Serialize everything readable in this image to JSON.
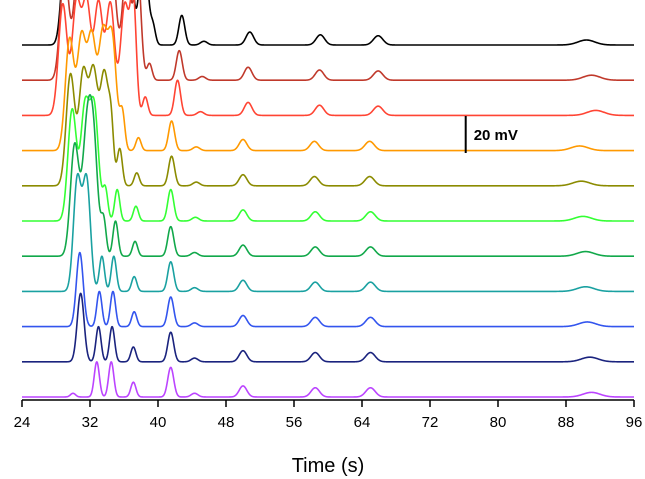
{
  "chart_data": {
    "type": "line",
    "title": "",
    "xlabel": "Time (s)",
    "ylabel": "",
    "xlim": [
      24,
      96
    ],
    "xticks": [
      "24",
      "32",
      "40",
      "48",
      "56",
      "64",
      "72",
      "80",
      "88",
      "96"
    ],
    "scale_bar": {
      "label": "20 mV",
      "value_mV": 20,
      "x": 76.2
    },
    "series": [
      {
        "color": "#000000",
        "peaks": [
          [
            29.2,
            60,
            0.5
          ],
          [
            30.8,
            60,
            0.5
          ],
          [
            32.0,
            60,
            0.5
          ],
          [
            33.4,
            60,
            0.5
          ],
          [
            34.8,
            60,
            0.5
          ],
          [
            36.5,
            60,
            0.5
          ],
          [
            38.3,
            60,
            0.45
          ],
          [
            39.4,
            10,
            0.3
          ],
          [
            42.8,
            16,
            0.35
          ],
          [
            45.4,
            2,
            0.4
          ],
          [
            50.8,
            7,
            0.45
          ],
          [
            59.1,
            5.5,
            0.5
          ],
          [
            65.9,
            5,
            0.55
          ],
          [
            90.4,
            2.7,
            1.0
          ]
        ]
      },
      {
        "color": "#c0392b",
        "peaks": [
          [
            29.0,
            60,
            0.5
          ],
          [
            30.6,
            60,
            0.5
          ],
          [
            31.8,
            60,
            0.5
          ],
          [
            33.2,
            60,
            0.5
          ],
          [
            34.6,
            60,
            0.5
          ],
          [
            36.3,
            60,
            0.5
          ],
          [
            37.6,
            60,
            0.4
          ],
          [
            39.0,
            9,
            0.3
          ],
          [
            42.5,
            16,
            0.35
          ],
          [
            45.2,
            2,
            0.4
          ],
          [
            50.6,
            7,
            0.45
          ],
          [
            59.0,
            5.5,
            0.5
          ],
          [
            65.9,
            5,
            0.55
          ],
          [
            91.0,
            2.7,
            1.0
          ]
        ]
      },
      {
        "color": "#ff4433",
        "peaks": [
          [
            28.8,
            60,
            0.5
          ],
          [
            30.4,
            60,
            0.5
          ],
          [
            31.6,
            60,
            0.5
          ],
          [
            33.0,
            60,
            0.5
          ],
          [
            34.4,
            60,
            0.5
          ],
          [
            36.1,
            60,
            0.5
          ],
          [
            37.1,
            60,
            0.35
          ],
          [
            38.5,
            10,
            0.3
          ],
          [
            42.3,
            19,
            0.35
          ],
          [
            45.0,
            2,
            0.4
          ],
          [
            50.6,
            7,
            0.45
          ],
          [
            59.0,
            5.5,
            0.5
          ],
          [
            65.9,
            5,
            0.55
          ],
          [
            91.5,
            2.7,
            1.0
          ]
        ]
      },
      {
        "color": "#ff9900",
        "peaks": [
          [
            29.6,
            60,
            0.5
          ],
          [
            31.0,
            60,
            0.5
          ],
          [
            32.2,
            60,
            0.5
          ],
          [
            33.5,
            60,
            0.5
          ],
          [
            34.6,
            60,
            0.5
          ],
          [
            35.8,
            20,
            0.3
          ],
          [
            37.7,
            7,
            0.3
          ],
          [
            41.6,
            16,
            0.35
          ],
          [
            44.5,
            2,
            0.4
          ],
          [
            50.0,
            6,
            0.45
          ],
          [
            58.4,
            5,
            0.5
          ],
          [
            64.9,
            5,
            0.55
          ],
          [
            89.6,
            2.5,
            1.0
          ]
        ]
      },
      {
        "color": "#8b8b00",
        "peaks": [
          [
            29.7,
            60,
            0.5
          ],
          [
            31.2,
            60,
            0.5
          ],
          [
            32.4,
            60,
            0.5
          ],
          [
            33.7,
            60,
            0.5
          ],
          [
            34.5,
            26,
            0.3
          ],
          [
            35.5,
            20,
            0.3
          ],
          [
            37.5,
            7,
            0.3
          ],
          [
            41.6,
            16,
            0.35
          ],
          [
            44.5,
            2,
            0.4
          ],
          [
            50.0,
            6,
            0.45
          ],
          [
            58.4,
            5,
            0.5
          ],
          [
            64.9,
            5,
            0.55
          ],
          [
            89.8,
            2.5,
            1.0
          ]
        ]
      },
      {
        "color": "#33ff33",
        "peaks": [
          [
            29.9,
            60,
            0.5
          ],
          [
            31.4,
            60,
            0.5
          ],
          [
            32.5,
            60,
            0.5
          ],
          [
            33.8,
            17,
            0.3
          ],
          [
            35.2,
            17,
            0.3
          ],
          [
            37.4,
            8,
            0.3
          ],
          [
            41.5,
            17,
            0.35
          ],
          [
            44.4,
            2,
            0.4
          ],
          [
            50.0,
            6,
            0.45
          ],
          [
            58.5,
            5,
            0.5
          ],
          [
            65.0,
            5,
            0.55
          ],
          [
            90.0,
            2.5,
            1.0
          ]
        ]
      },
      {
        "color": "#11a84a",
        "peaks": [
          [
            30.2,
            60,
            0.5
          ],
          [
            31.6,
            60,
            0.5
          ],
          [
            32.4,
            60,
            0.5
          ],
          [
            33.6,
            19,
            0.3
          ],
          [
            35.0,
            19,
            0.3
          ],
          [
            37.3,
            8,
            0.3
          ],
          [
            41.5,
            16,
            0.35
          ],
          [
            44.3,
            2,
            0.4
          ],
          [
            50.0,
            6,
            0.45
          ],
          [
            58.5,
            5,
            0.5
          ],
          [
            65.0,
            5,
            0.55
          ],
          [
            90.3,
            2.5,
            1.0
          ]
        ]
      },
      {
        "color": "#1aa1a1",
        "peaks": [
          [
            30.5,
            60,
            0.45
          ],
          [
            31.6,
            60,
            0.45
          ],
          [
            33.4,
            19,
            0.3
          ],
          [
            34.8,
            19,
            0.3
          ],
          [
            37.2,
            8,
            0.3
          ],
          [
            41.5,
            16,
            0.35
          ],
          [
            44.3,
            2,
            0.4
          ],
          [
            50.0,
            6,
            0.45
          ],
          [
            58.5,
            5,
            0.5
          ],
          [
            65.0,
            5,
            0.55
          ],
          [
            90.3,
            2.5,
            1.0
          ]
        ]
      },
      {
        "color": "#3355ee",
        "peaks": [
          [
            30.8,
            40,
            0.4
          ],
          [
            33.1,
            19,
            0.3
          ],
          [
            34.7,
            19,
            0.3
          ],
          [
            37.2,
            8,
            0.3
          ],
          [
            41.5,
            16,
            0.35
          ],
          [
            44.3,
            2,
            0.4
          ],
          [
            50.0,
            6,
            0.45
          ],
          [
            58.5,
            5,
            0.5
          ],
          [
            65.0,
            5,
            0.55
          ],
          [
            90.5,
            2.5,
            1.0
          ]
        ]
      },
      {
        "color": "#1a237e",
        "peaks": [
          [
            30.9,
            37,
            0.4
          ],
          [
            33.0,
            19,
            0.3
          ],
          [
            34.6,
            19,
            0.3
          ],
          [
            37.1,
            8,
            0.3
          ],
          [
            41.5,
            16,
            0.35
          ],
          [
            44.3,
            2,
            0.4
          ],
          [
            50.0,
            6,
            0.45
          ],
          [
            58.5,
            5,
            0.5
          ],
          [
            65.0,
            5,
            0.55
          ],
          [
            90.8,
            2.5,
            1.0
          ]
        ]
      },
      {
        "color": "#bb44ff",
        "peaks": [
          [
            30.0,
            2,
            0.3
          ],
          [
            32.8,
            19,
            0.3
          ],
          [
            34.5,
            19,
            0.3
          ],
          [
            37.1,
            8,
            0.3
          ],
          [
            41.5,
            16,
            0.35
          ],
          [
            44.3,
            2,
            0.4
          ],
          [
            50.0,
            6,
            0.45
          ],
          [
            58.5,
            5,
            0.5
          ],
          [
            65.0,
            5,
            0.55
          ],
          [
            91.0,
            2.5,
            1.0
          ]
        ]
      }
    ]
  }
}
